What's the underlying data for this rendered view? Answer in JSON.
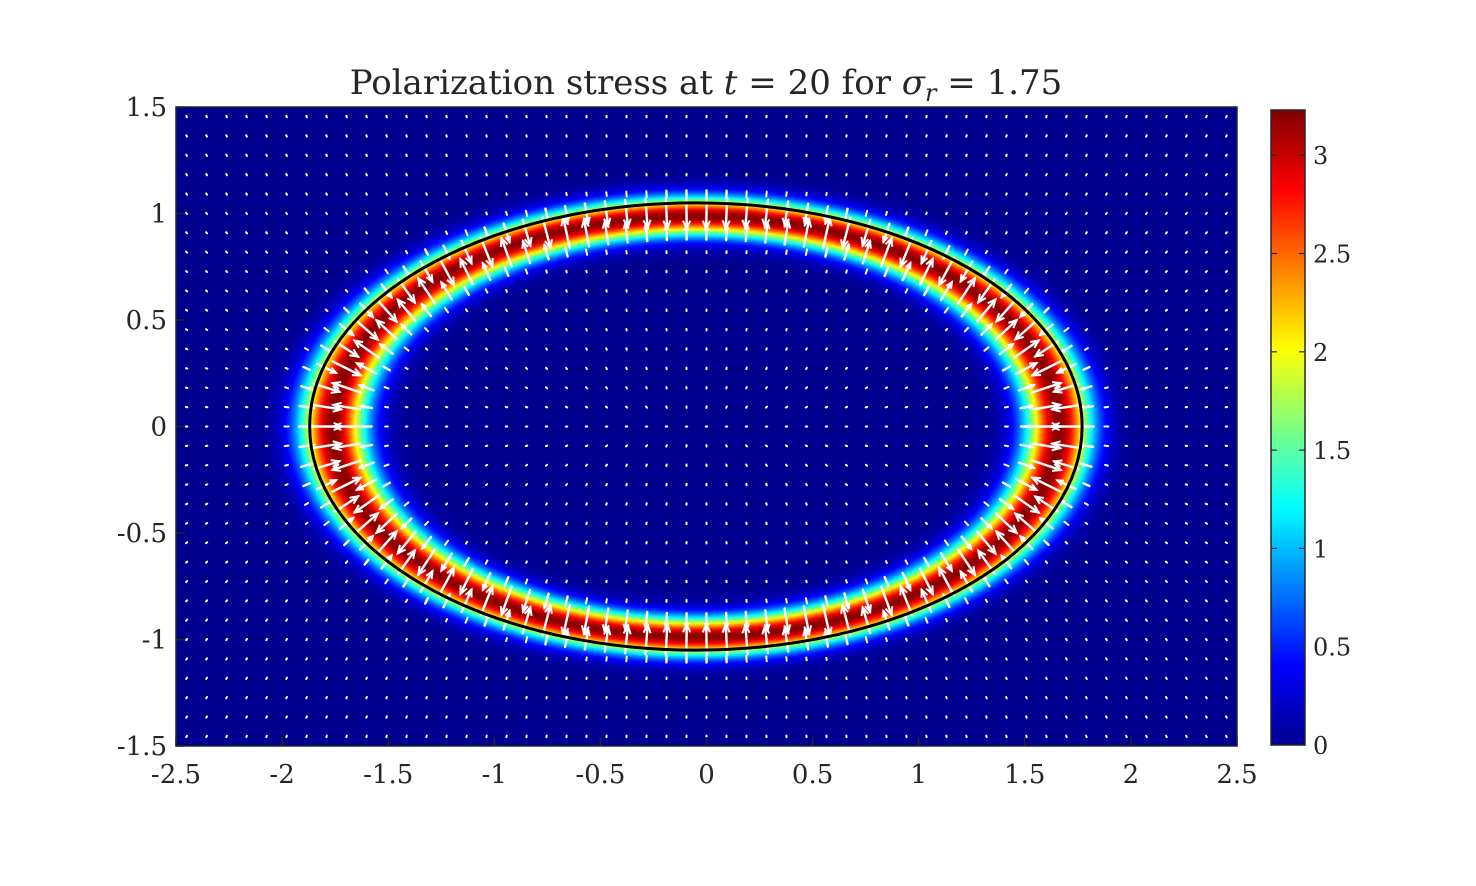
{
  "chart_data": {
    "type": "heatmap",
    "title": "Polarization stress at t = 20 for σr = 1.75",
    "title_parts": {
      "prefix": "Polarization stress at ",
      "t_symbol": "t",
      "t_eq": " = 20 for ",
      "sigma_symbol": "σ",
      "sigma_sub": "r",
      "sigma_eq": " = 1.75"
    },
    "xlim": [
      -2.5,
      2.5
    ],
    "ylim": [
      -1.5,
      1.5
    ],
    "x_ticks": [
      "-2.5",
      "-2",
      "-1.5",
      "-1",
      "-0.5",
      "0",
      "0.5",
      "1",
      "1.5",
      "2",
      "2.5"
    ],
    "x_tick_values": [
      -2.5,
      -2,
      -1.5,
      -1,
      -0.5,
      0,
      0.5,
      1,
      1.5,
      2,
      2.5
    ],
    "y_ticks": [
      "1.5",
      "1",
      "0.5",
      "0",
      "-0.5",
      "-1",
      "-1.5"
    ],
    "y_tick_values": [
      1.5,
      1,
      0.5,
      0,
      -0.5,
      -1,
      -1.5
    ],
    "colorbar": {
      "min": 0,
      "max": 3.23,
      "ticks": [
        "3",
        "2.5",
        "2",
        "1.5",
        "1",
        "0.5",
        "0"
      ],
      "tick_values": [
        3,
        2.5,
        2,
        1.5,
        1,
        0.5,
        0
      ],
      "colormap": "jet"
    },
    "interface_ellipse": {
      "center": [
        -0.05,
        0
      ],
      "semi_axis_x": 1.82,
      "semi_axis_y": 1.05
    },
    "field_peak": 3.2,
    "quiver_color": "#ffffff",
    "interface_color": "#000000",
    "grid": false,
    "legend": "none"
  }
}
